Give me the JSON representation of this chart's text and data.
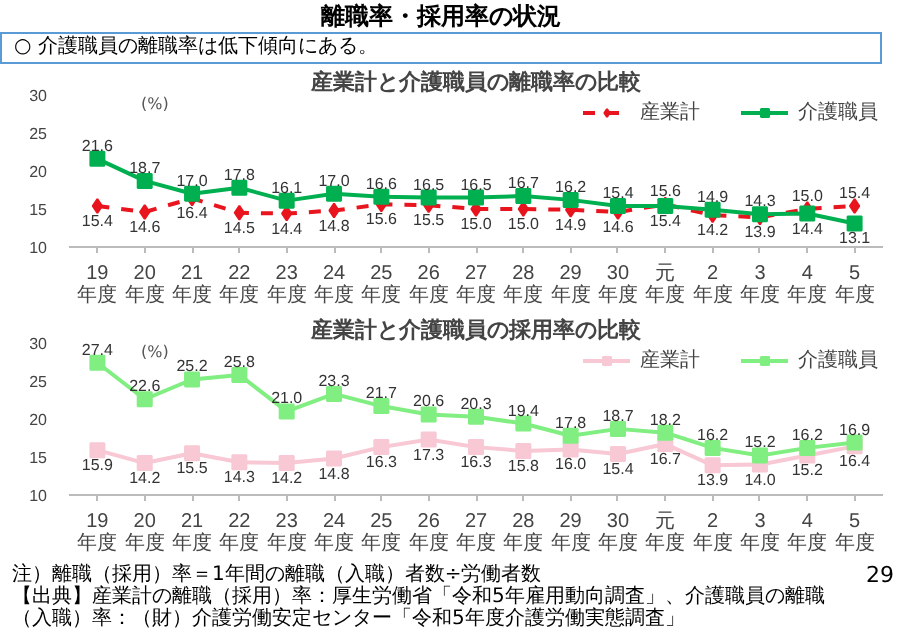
{
  "chart_data": [
    {
      "type": "line",
      "title": "産業計と介護職員の離職率の比較",
      "ylabel": "(%)",
      "annotations": [
        "離職率・採用率の状況",
        "○ 介護職員の離職率は低下傾向にある。"
      ],
      "categories": [
        "19年度",
        "20年度",
        "21年度",
        "22年度",
        "23年度",
        "24年度",
        "25年度",
        "26年度",
        "27年度",
        "28年度",
        "29年度",
        "30年度",
        "元年度",
        "2年度",
        "3年度",
        "4年度",
        "5年度"
      ],
      "ylim": [
        10,
        30
      ],
      "yticks": [
        10,
        15,
        20,
        25,
        30
      ],
      "legend": "top right",
      "series": [
        {
          "name": "産業計",
          "color": "#e8141e",
          "marker": "diamond",
          "line_style": "dashed",
          "values": [
            15.4,
            14.6,
            16.4,
            14.5,
            14.4,
            14.8,
            15.6,
            15.5,
            15.0,
            15.0,
            14.9,
            14.6,
            15.6,
            14.2,
            13.9,
            15.0,
            15.4
          ],
          "value_labels": [
            "15.4",
            "14.6",
            "16.4",
            "14.5",
            "14.4",
            "14.8",
            "15.6",
            "15.5",
            "15.0",
            "15.0",
            "14.9",
            "14.6",
            "15.6",
            "14.2",
            "13.9",
            "15.0",
            "15.4"
          ]
        },
        {
          "name": "介護職員",
          "color": "#00b050",
          "marker": "square",
          "line_style": "solid",
          "values": [
            21.6,
            18.7,
            17.0,
            17.8,
            16.1,
            17.0,
            16.6,
            16.5,
            16.5,
            16.7,
            16.2,
            15.4,
            15.4,
            14.9,
            14.3,
            14.4,
            13.1
          ],
          "value_labels": [
            "21.6",
            "18.7",
            "17.0",
            "17.8",
            "16.1",
            "17.0",
            "16.6",
            "16.5",
            "16.5",
            "16.7",
            "16.2",
            "15.4",
            "15.4",
            "14.9",
            "14.3",
            "14.4",
            "13.1"
          ]
        }
      ]
    },
    {
      "type": "line",
      "title": "産業計と介護職員の採用率の比較",
      "ylabel": "(%)",
      "annotations": [
        "注）離職（採用）率＝1年間の離職（入職）者数÷労働者数",
        "【出典】産業計の離職（採用）率：厚生労働省「令和5年雇用動向調査」、介護職員の離職（入職）率：（財）介護労働安定センター「令和5年度介護労働実態調査」",
        "29"
      ],
      "categories": [
        "19年度",
        "20年度",
        "21年度",
        "22年度",
        "23年度",
        "24年度",
        "25年度",
        "26年度",
        "27年度",
        "28年度",
        "29年度",
        "30年度",
        "元年度",
        "2年度",
        "3年度",
        "4年度",
        "5年度"
      ],
      "ylim": [
        10,
        30
      ],
      "yticks": [
        10,
        15,
        20,
        25,
        30
      ],
      "legend": "top right",
      "series": [
        {
          "name": "産業計",
          "color": "#f8c8d4",
          "marker": "square",
          "line_style": "solid",
          "values": [
            15.9,
            14.2,
            15.5,
            14.3,
            14.2,
            14.8,
            16.3,
            17.3,
            16.3,
            15.8,
            16.0,
            15.4,
            16.7,
            13.9,
            14.0,
            15.2,
            16.4
          ],
          "value_labels": [
            "15.9",
            "14.2",
            "15.5",
            "14.3",
            "14.2",
            "14.8",
            "16.3",
            "17.3",
            "16.3",
            "15.8",
            "16.0",
            "15.4",
            "16.7",
            "13.9",
            "14.0",
            "15.2",
            "16.4"
          ]
        },
        {
          "name": "介護職員",
          "color": "#80ee80",
          "marker": "square",
          "line_style": "solid",
          "values": [
            27.4,
            22.6,
            25.2,
            25.8,
            21.0,
            23.3,
            21.7,
            20.6,
            20.3,
            19.4,
            17.8,
            18.7,
            18.2,
            16.2,
            15.2,
            16.2,
            16.9
          ],
          "value_labels": [
            "27.4",
            "22.6",
            "25.2",
            "25.8",
            "21.0",
            "23.3",
            "21.7",
            "20.6",
            "20.3",
            "19.4",
            "17.8",
            "18.7",
            "18.2",
            "16.2",
            "15.2",
            "16.2",
            "16.9"
          ]
        }
      ]
    }
  ]
}
